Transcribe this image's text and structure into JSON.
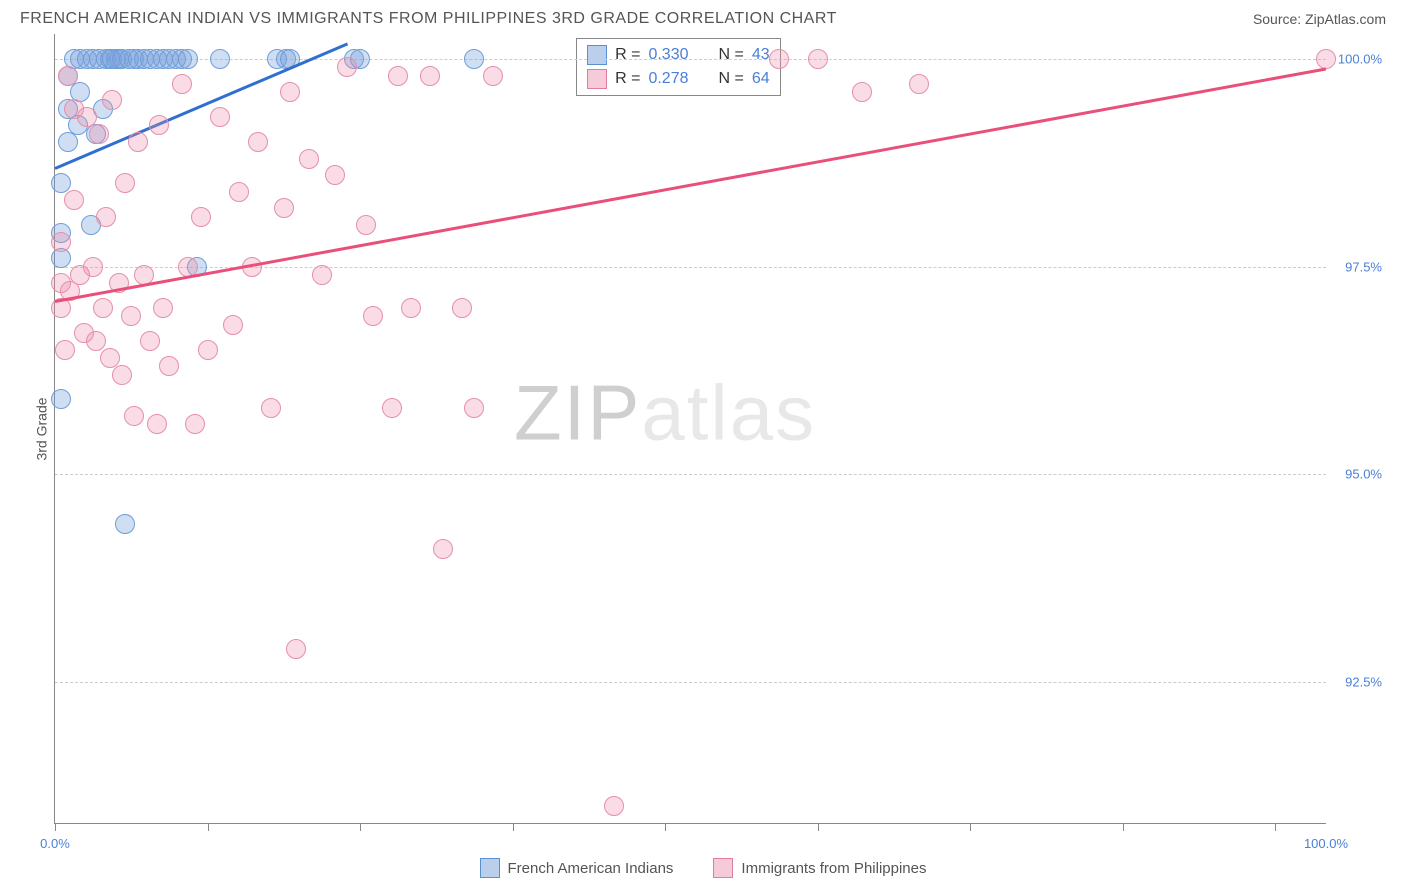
{
  "header": {
    "title": "FRENCH AMERICAN INDIAN VS IMMIGRANTS FROM PHILIPPINES 3RD GRADE CORRELATION CHART",
    "source_prefix": "Source: ",
    "source_name": "ZipAtlas.com"
  },
  "chart": {
    "type": "scatter",
    "ylabel": "3rd Grade",
    "x_range": [
      0,
      100
    ],
    "y_range": [
      90.8,
      100.3
    ],
    "x_ticks": [
      0,
      12,
      24,
      36,
      48,
      60,
      72,
      84,
      96
    ],
    "x_tick_labels": {
      "0": "0.0%",
      "100": "100.0%"
    },
    "y_gridlines": [
      92.5,
      95.0,
      97.5,
      100.0
    ],
    "y_tick_labels": [
      "92.5%",
      "95.0%",
      "97.5%",
      "100.0%"
    ],
    "background_color": "#ffffff",
    "grid_color": "#cccccc",
    "axis_color": "#888888",
    "tick_label_color": "#4a7fd8",
    "watermark": {
      "strong": "ZIP",
      "light": "atlas"
    },
    "series": [
      {
        "name": "French American Indians",
        "fill_color": "rgba(120,160,220,0.35)",
        "stroke_color": "#6f9fd8",
        "line_color": "#2f6fd0",
        "legend_square_fill": "rgba(120,160,220,0.5)",
        "legend_square_stroke": "#5a8fd0",
        "R_label": "R =",
        "R_value": "0.330",
        "N_label": "N =",
        "N_value": "43",
        "trend": {
          "x1": 0,
          "y1": 98.7,
          "x2": 23,
          "y2": 100.2
        },
        "points": [
          [
            0.5,
            98.5
          ],
          [
            0.5,
            97.9
          ],
          [
            0.5,
            97.6
          ],
          [
            0.5,
            95.9
          ],
          [
            1.0,
            99.0
          ],
          [
            1.0,
            99.4
          ],
          [
            1.0,
            99.8
          ],
          [
            1.5,
            100.0
          ],
          [
            1.8,
            99.2
          ],
          [
            2.0,
            99.6
          ],
          [
            2.0,
            100.0
          ],
          [
            2.5,
            100.0
          ],
          [
            2.8,
            98.0
          ],
          [
            3.0,
            100.0
          ],
          [
            3.2,
            99.1
          ],
          [
            3.5,
            100.0
          ],
          [
            3.8,
            99.4
          ],
          [
            4.0,
            100.0
          ],
          [
            4.3,
            100.0
          ],
          [
            4.5,
            100.0
          ],
          [
            4.8,
            100.0
          ],
          [
            5.0,
            100.0
          ],
          [
            5.3,
            100.0
          ],
          [
            5.8,
            100.0
          ],
          [
            6.2,
            100.0
          ],
          [
            6.5,
            100.0
          ],
          [
            7.0,
            100.0
          ],
          [
            7.5,
            100.0
          ],
          [
            8.0,
            100.0
          ],
          [
            8.5,
            100.0
          ],
          [
            9.0,
            100.0
          ],
          [
            9.5,
            100.0
          ],
          [
            10.0,
            100.0
          ],
          [
            10.5,
            100.0
          ],
          [
            11.2,
            97.5
          ],
          [
            13.0,
            100.0
          ],
          [
            17.5,
            100.0
          ],
          [
            18.2,
            100.0
          ],
          [
            18.5,
            100.0
          ],
          [
            23.5,
            100.0
          ],
          [
            24.0,
            100.0
          ],
          [
            33.0,
            100.0
          ],
          [
            5.5,
            94.4
          ]
        ]
      },
      {
        "name": "Immigrants from Philippines",
        "fill_color": "rgba(235,140,170,0.30)",
        "stroke_color": "#e590ab",
        "line_color": "#e94f7a",
        "legend_square_fill": "rgba(235,140,170,0.45)",
        "legend_square_stroke": "#e07da0",
        "R_label": "R =",
        "R_value": "0.278",
        "N_label": "N =",
        "N_value": "64",
        "trend": {
          "x1": 0,
          "y1": 97.1,
          "x2": 100,
          "y2": 99.9
        },
        "points": [
          [
            0.5,
            97.8
          ],
          [
            0.5,
            97.3
          ],
          [
            0.5,
            97.0
          ],
          [
            0.8,
            96.5
          ],
          [
            1.0,
            99.8
          ],
          [
            1.2,
            97.2
          ],
          [
            1.5,
            99.4
          ],
          [
            1.5,
            98.3
          ],
          [
            2.0,
            97.4
          ],
          [
            2.3,
            96.7
          ],
          [
            2.5,
            99.3
          ],
          [
            3.0,
            97.5
          ],
          [
            3.2,
            96.6
          ],
          [
            3.5,
            99.1
          ],
          [
            3.8,
            97.0
          ],
          [
            4.0,
            98.1
          ],
          [
            4.3,
            96.4
          ],
          [
            4.5,
            99.5
          ],
          [
            5.0,
            97.3
          ],
          [
            5.3,
            96.2
          ],
          [
            5.5,
            98.5
          ],
          [
            6.0,
            96.9
          ],
          [
            6.2,
            95.7
          ],
          [
            6.5,
            99.0
          ],
          [
            7.0,
            97.4
          ],
          [
            7.5,
            96.6
          ],
          [
            8.0,
            95.6
          ],
          [
            8.2,
            99.2
          ],
          [
            8.5,
            97.0
          ],
          [
            9.0,
            96.3
          ],
          [
            10.0,
            99.7
          ],
          [
            10.5,
            97.5
          ],
          [
            11.0,
            95.6
          ],
          [
            11.5,
            98.1
          ],
          [
            12.0,
            96.5
          ],
          [
            13.0,
            99.3
          ],
          [
            14.0,
            96.8
          ],
          [
            14.5,
            98.4
          ],
          [
            15.5,
            97.5
          ],
          [
            16.0,
            99.0
          ],
          [
            17.0,
            95.8
          ],
          [
            18.0,
            98.2
          ],
          [
            18.5,
            99.6
          ],
          [
            19.0,
            92.9
          ],
          [
            20.0,
            98.8
          ],
          [
            21.0,
            97.4
          ],
          [
            22.0,
            98.6
          ],
          [
            23.0,
            99.9
          ],
          [
            24.5,
            98.0
          ],
          [
            25.0,
            96.9
          ],
          [
            26.5,
            95.8
          ],
          [
            27.0,
            99.8
          ],
          [
            28.0,
            97.0
          ],
          [
            29.5,
            99.8
          ],
          [
            30.5,
            94.1
          ],
          [
            32.0,
            97.0
          ],
          [
            33.0,
            95.8
          ],
          [
            34.5,
            99.8
          ],
          [
            44.0,
            91.0
          ],
          [
            57.0,
            100.0
          ],
          [
            60.0,
            100.0
          ],
          [
            63.5,
            99.6
          ],
          [
            68.0,
            99.7
          ],
          [
            100.0,
            100.0
          ]
        ]
      }
    ]
  },
  "bottom_legend": [
    "French American Indians",
    "Immigrants from Philippines"
  ]
}
